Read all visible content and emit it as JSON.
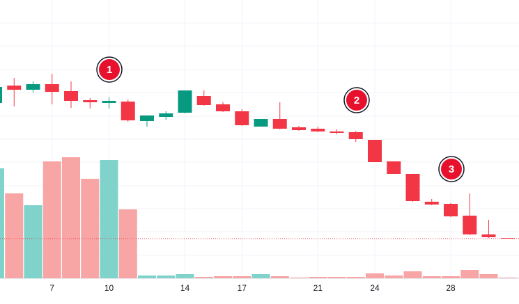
{
  "chart_data": {
    "type": "candlestick",
    "categories": [
      null,
      null,
      null,
      "7",
      null,
      null,
      "10",
      null,
      null,
      null,
      "14",
      null,
      null,
      "17",
      null,
      null,
      null,
      "21",
      null,
      null,
      "24",
      null,
      null,
      null,
      "28",
      null,
      null,
      null
    ],
    "open": [
      252,
      277,
      271,
      279,
      269,
      256,
      252,
      254,
      226,
      232,
      238,
      262,
      250,
      240,
      218,
      229,
      217,
      215,
      211,
      210,
      199,
      168,
      150,
      110,
      107,
      90,
      63,
      58
    ],
    "high": [
      280,
      288,
      283,
      294,
      283,
      259,
      260,
      257,
      234,
      240,
      270,
      270,
      253,
      243,
      229,
      253,
      219,
      218,
      214,
      212,
      199,
      168,
      150,
      114,
      108,
      122,
      84,
      58
    ],
    "low": [
      250,
      247,
      267,
      250,
      245,
      244,
      244,
      225,
      218,
      228,
      237,
      248,
      239,
      219,
      218,
      214,
      212,
      210,
      207,
      196,
      167,
      150,
      110,
      105,
      88,
      62,
      58,
      57
    ],
    "close": [
      275,
      271,
      279,
      268,
      255,
      253,
      255,
      227,
      234,
      237,
      270,
      249,
      240,
      220,
      229,
      215,
      213,
      211,
      209,
      200,
      167,
      150,
      111,
      106,
      89,
      63,
      59,
      57
    ],
    "volume": [
      158,
      122,
      105,
      168,
      174,
      143,
      170,
      99,
      4,
      4,
      6,
      2,
      3,
      3,
      6,
      3,
      1,
      2,
      2,
      2,
      7,
      4,
      10,
      3,
      3,
      12,
      6,
      1
    ],
    "ylim": [
      0,
      400
    ],
    "y2lim": [
      0,
      400
    ],
    "up_color": "#089981",
    "down_color": "#f23645",
    "volume_up_color": "#7fd3ca",
    "volume_down_color": "#f8a5a6",
    "markers": [
      "1",
      "2",
      "3"
    ]
  }
}
